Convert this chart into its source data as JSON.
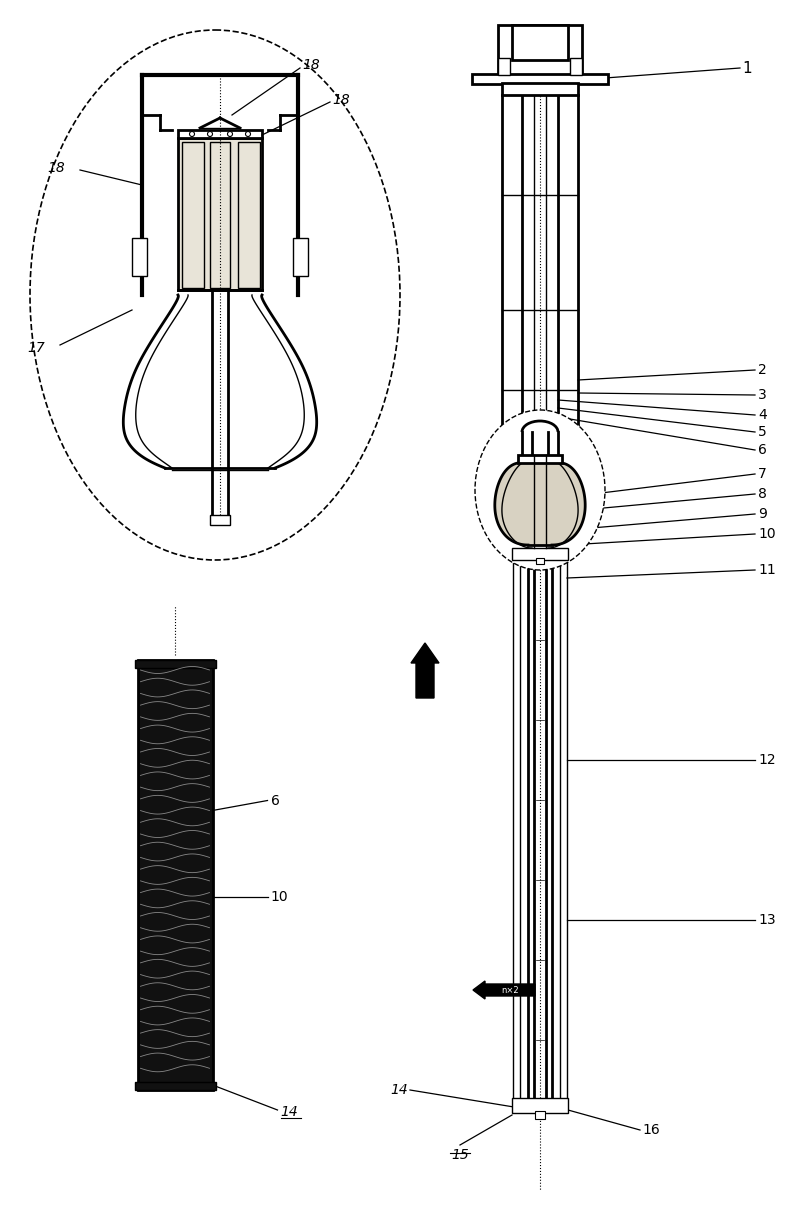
{
  "bg_color": "#ffffff",
  "lc": "#000000",
  "fig_width": 8.0,
  "fig_height": 12.32,
  "dpi": 100,
  "gray_light": "#e8e4d8",
  "gray_med": "#c8c0a8",
  "dark": "#111111"
}
